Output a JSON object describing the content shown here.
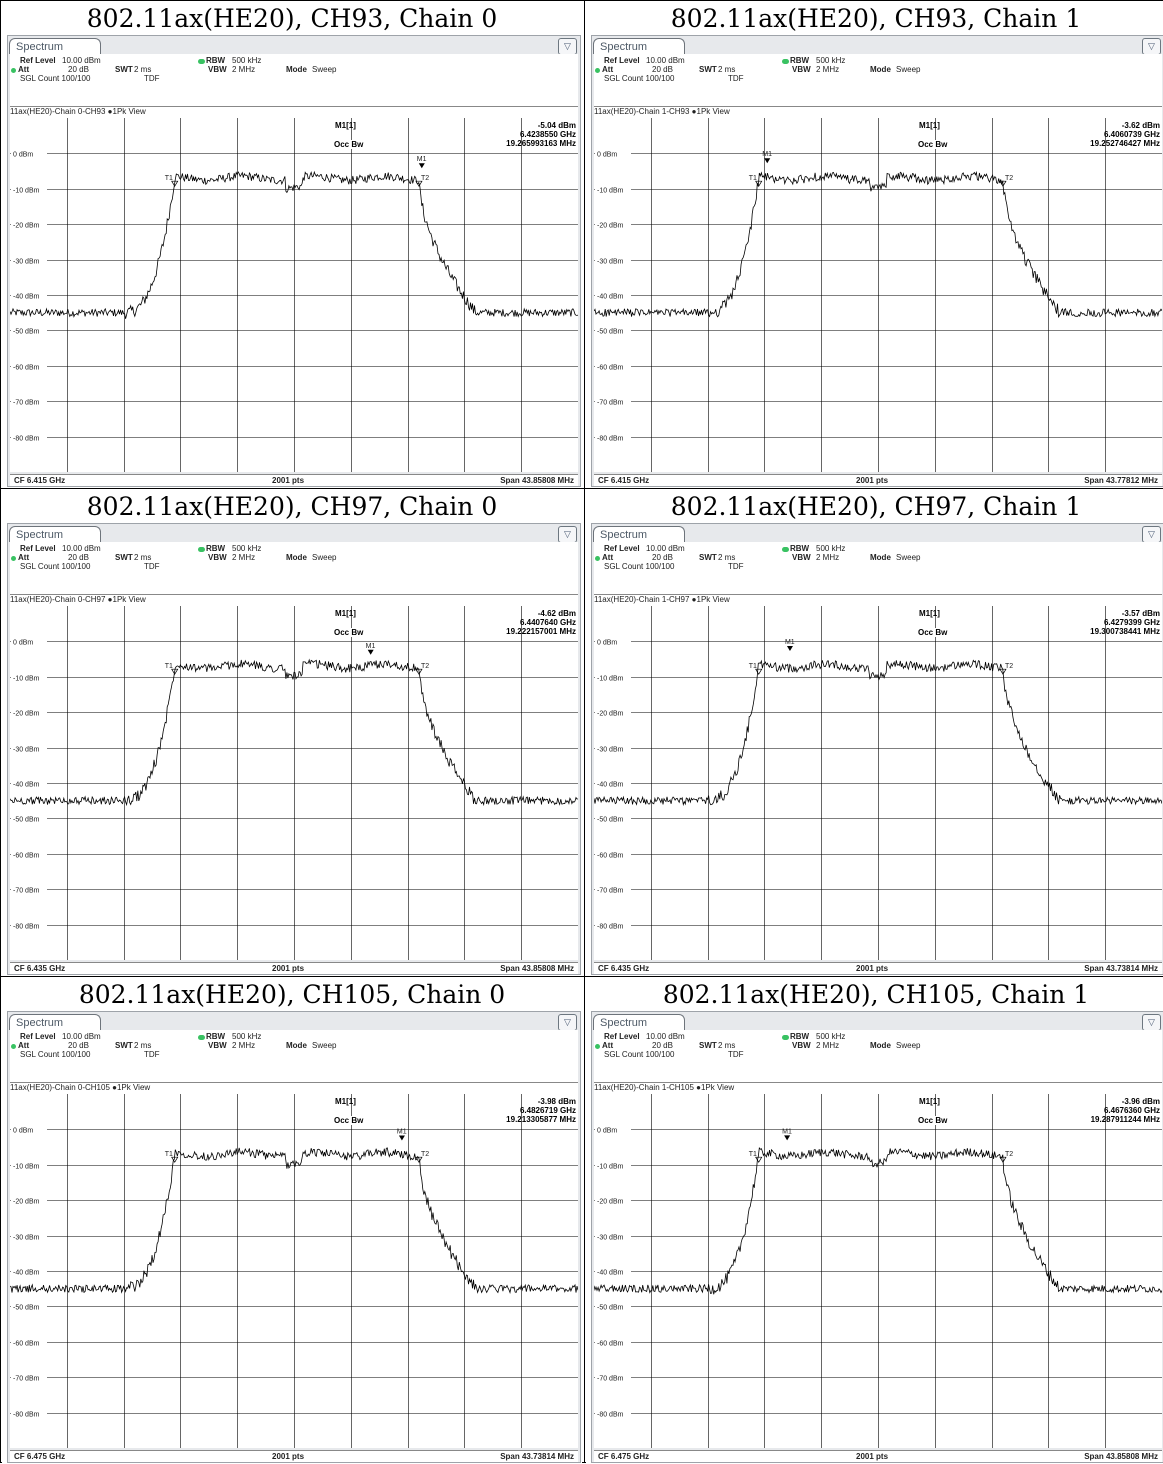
{
  "panels": [
    {
      "title": "802.11ax(HE20), CH93, Chain 0",
      "tab": "Spectrum",
      "ref_level_label": "Ref Level",
      "ref_level_value": "10.00 dBm",
      "att_label": "Att",
      "att_value": "20 dB",
      "swt_label": "SWT",
      "swt_value": "2 ms",
      "rbw_label": "RBW",
      "rbw_value": "500 kHz",
      "vbw_label": "VBW",
      "vbw_value": "2 MHz",
      "mode_label": "Mode",
      "mode_value": "Sweep",
      "sgl_count": "SGL Count 100/100",
      "tdf": "TDF",
      "trace_name": "11ax(HE20)-Chain 0-CH93",
      "view": "1Pk View",
      "marker_label": "M1[1]",
      "marker_level": "-5.04 dBm",
      "marker_freq": "6.4238550 GHz",
      "occbw_label": "Occ Bw",
      "occbw_value": "19.265993163 MHz",
      "cf": "CF 6.415 GHz",
      "pts": "2001 pts",
      "span": "Span 43.85808 MHz",
      "m1_pos": 0.725,
      "m1_dbm": -5.04,
      "t1_pos": 0.29,
      "t2_pos": 0.72
    },
    {
      "title": "802.11ax(HE20), CH93, Chain 1",
      "tab": "Spectrum",
      "ref_level_label": "Ref Level",
      "ref_level_value": "10.00 dBm",
      "att_label": "Att",
      "att_value": "20 dB",
      "swt_label": "SWT",
      "swt_value": "2 ms",
      "rbw_label": "RBW",
      "rbw_value": "500 kHz",
      "vbw_label": "VBW",
      "vbw_value": "2 MHz",
      "mode_label": "Mode",
      "mode_value": "Sweep",
      "sgl_count": "SGL Count 100/100",
      "tdf": "TDF",
      "trace_name": "11ax(HE20)-Chain 1-CH93",
      "view": "1Pk View",
      "marker_label": "M1[1]",
      "marker_level": "-3.62 dBm",
      "marker_freq": "6.4060739 GHz",
      "occbw_label": "Occ Bw",
      "occbw_value": "19.252746427 MHz",
      "cf": "CF 6.415 GHz",
      "pts": "2001 pts",
      "span": "Span 43.77812 MHz",
      "m1_pos": 0.305,
      "m1_dbm": -3.62,
      "t1_pos": 0.29,
      "t2_pos": 0.72
    },
    {
      "title": "802.11ax(HE20), CH97, Chain 0",
      "tab": "Spectrum",
      "ref_level_label": "Ref Level",
      "ref_level_value": "10.00 dBm",
      "att_label": "Att",
      "att_value": "20 dB",
      "swt_label": "SWT",
      "swt_value": "2 ms",
      "rbw_label": "RBW",
      "rbw_value": "500 kHz",
      "vbw_label": "VBW",
      "vbw_value": "2 MHz",
      "mode_label": "Mode",
      "mode_value": "Sweep",
      "sgl_count": "SGL Count 100/100",
      "tdf": "TDF",
      "trace_name": "11ax(HE20)-Chain 0-CH97",
      "view": "1Pk View",
      "marker_label": "M1[1]",
      "marker_level": "-4.62 dBm",
      "marker_freq": "6.4407640 GHz",
      "occbw_label": "Occ Bw",
      "occbw_value": "19.222157001 MHz",
      "cf": "CF 6.435 GHz",
      "pts": "2001 pts",
      "span": "Span 43.85808 MHz",
      "m1_pos": 0.635,
      "m1_dbm": -4.62,
      "t1_pos": 0.29,
      "t2_pos": 0.72
    },
    {
      "title": "802.11ax(HE20), CH97, Chain 1",
      "tab": "Spectrum",
      "ref_level_label": "Ref Level",
      "ref_level_value": "10.00 dBm",
      "att_label": "Att",
      "att_value": "20 dB",
      "swt_label": "SWT",
      "swt_value": "2 ms",
      "rbw_label": "RBW",
      "rbw_value": "500 kHz",
      "vbw_label": "VBW",
      "vbw_value": "2 MHz",
      "mode_label": "Mode",
      "mode_value": "Sweep",
      "sgl_count": "SGL Count 100/100",
      "tdf": "TDF",
      "trace_name": "11ax(HE20)-Chain 1-CH97",
      "view": "1Pk View",
      "marker_label": "M1[1]",
      "marker_level": "-3.57 dBm",
      "marker_freq": "6.4279399 GHz",
      "occbw_label": "Occ Bw",
      "occbw_value": "19.300738441 MHz",
      "cf": "CF 6.435 GHz",
      "pts": "2001 pts",
      "span": "Span 43.73814 MHz",
      "m1_pos": 0.345,
      "m1_dbm": -3.57,
      "t1_pos": 0.29,
      "t2_pos": 0.72
    },
    {
      "title": "802.11ax(HE20), CH105, Chain 0",
      "tab": "Spectrum",
      "ref_level_label": "Ref Level",
      "ref_level_value": "10.00 dBm",
      "att_label": "Att",
      "att_value": "20 dB",
      "swt_label": "SWT",
      "swt_value": "2 ms",
      "rbw_label": "RBW",
      "rbw_value": "500 kHz",
      "vbw_label": "VBW",
      "vbw_value": "2 MHz",
      "mode_label": "Mode",
      "mode_value": "Sweep",
      "sgl_count": "SGL Count 100/100",
      "tdf": "TDF",
      "trace_name": "11ax(HE20)-Chain 0-CH105",
      "view": "1Pk View",
      "marker_label": "M1[1]",
      "marker_level": "-3.98 dBm",
      "marker_freq": "6.4826719 GHz",
      "occbw_label": "Occ Bw",
      "occbw_value": "19.213305877 MHz",
      "cf": "CF 6.475 GHz",
      "pts": "2001 pts",
      "span": "Span 43.73814 MHz",
      "m1_pos": 0.69,
      "m1_dbm": -3.98,
      "t1_pos": 0.29,
      "t2_pos": 0.72
    },
    {
      "title": "802.11ax(HE20), CH105, Chain 1",
      "tab": "Spectrum",
      "ref_level_label": "Ref Level",
      "ref_level_value": "10.00 dBm",
      "att_label": "Att",
      "att_value": "20 dB",
      "swt_label": "SWT",
      "swt_value": "2 ms",
      "rbw_label": "RBW",
      "rbw_value": "500 kHz",
      "vbw_label": "VBW",
      "vbw_value": "2 MHz",
      "mode_label": "Mode",
      "mode_value": "Sweep",
      "sgl_count": "SGL Count 100/100",
      "tdf": "TDF",
      "trace_name": "11ax(HE20)-Chain 1-CH105",
      "view": "1Pk View",
      "marker_label": "M1[1]",
      "marker_level": "-3.96 dBm",
      "marker_freq": "6.4676360 GHz",
      "occbw_label": "Occ Bw",
      "occbw_value": "19.287911244 MHz",
      "cf": "CF 6.475 GHz",
      "pts": "2001 pts",
      "span": "Span 43.85808 MHz",
      "m1_pos": 0.34,
      "m1_dbm": -3.96,
      "t1_pos": 0.29,
      "t2_pos": 0.72
    }
  ],
  "chart_data": {
    "type": "line",
    "y_tick_labels": [
      "0 dBm",
      "-10 dBm",
      "-20 dBm",
      "-30 dBm",
      "-40 dBm",
      "-50 dBm",
      "-60 dBm",
      "-70 dBm",
      "-80 dBm"
    ],
    "ylim": [
      -90,
      10
    ],
    "grid": true,
    "x_divisions": 10,
    "marker_labels": [
      "M1",
      "T1",
      "T2"
    ],
    "inband_level_dbm": -7,
    "noise_floor_dbm": -45,
    "colors": {
      "trace": "#000000",
      "grid": "#000000",
      "status_dot": "#39c262"
    }
  }
}
